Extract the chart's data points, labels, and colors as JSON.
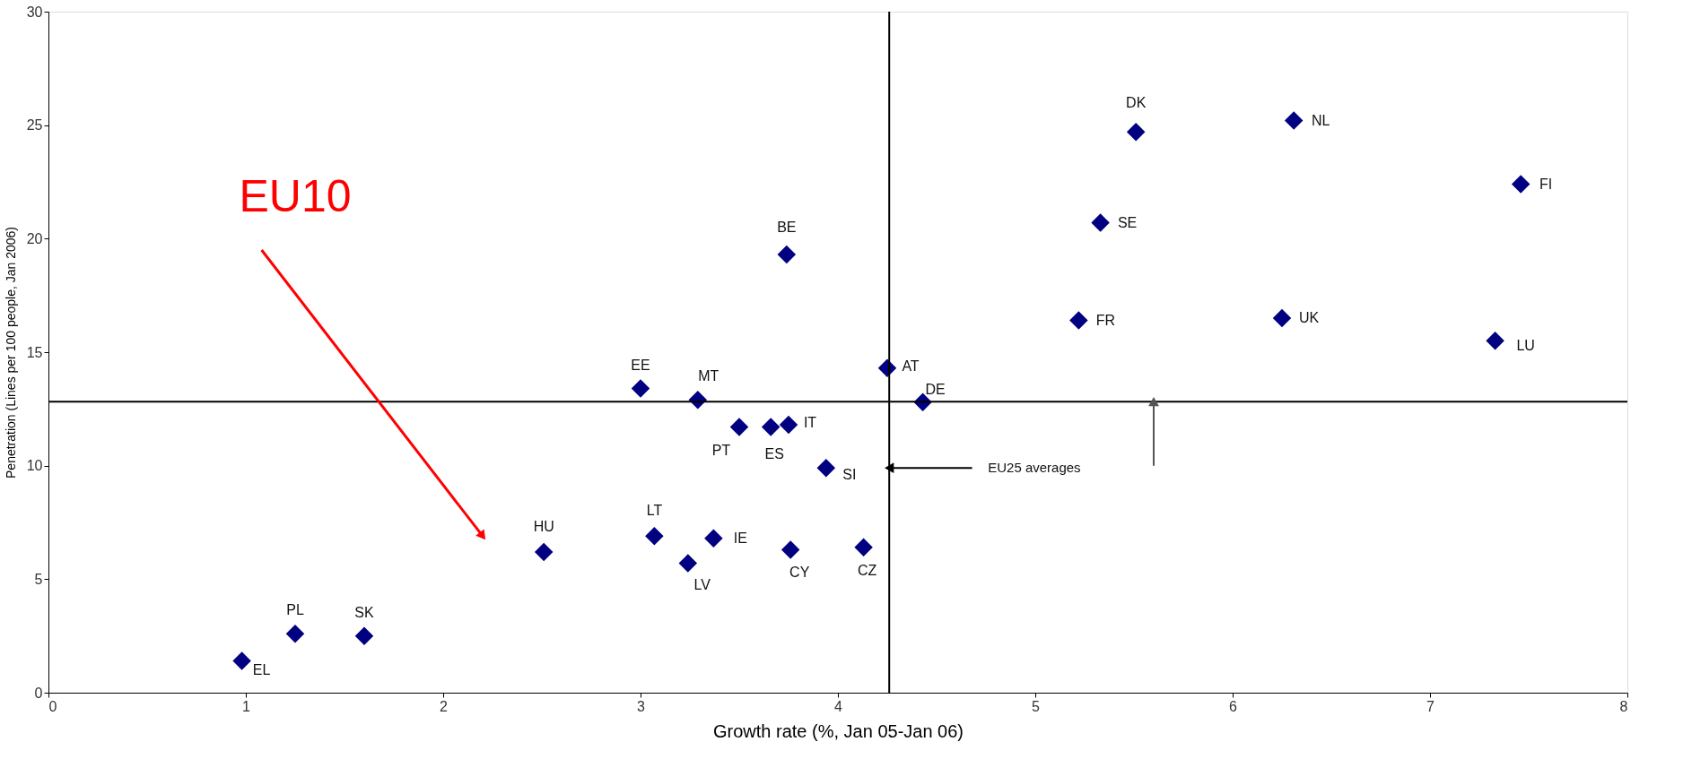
{
  "chart_data": {
    "type": "scatter",
    "xlabel": "Growth rate (%, Jan 05-Jan 06)",
    "ylabel": "Penetration (Lines per 100 people, Jan 2006)",
    "xlim": [
      0,
      8
    ],
    "xticks": [
      0,
      1,
      2,
      3,
      4,
      5,
      6,
      7,
      8
    ],
    "ylim": [
      0,
      30
    ],
    "yticks": [
      0,
      5,
      10,
      15,
      20,
      25,
      30
    ],
    "grid": false,
    "marker": "diamond",
    "series": [
      {
        "color": "#000080",
        "x": [
          0.98,
          1.25,
          1.6,
          2.51,
          3.07,
          3.24,
          3.37,
          3.76,
          4.13,
          3.94,
          3.5,
          3.66,
          3.75,
          3.29,
          3.0,
          3.74,
          4.25,
          4.43,
          5.22,
          5.33,
          5.51,
          6.31,
          6.25,
          7.46,
          7.33
        ],
        "values": [
          1.4,
          2.6,
          2.5,
          6.2,
          6.9,
          5.7,
          6.8,
          6.3,
          6.4,
          9.9,
          11.7,
          11.7,
          11.8,
          12.9,
          13.4,
          19.3,
          14.3,
          12.8,
          16.4,
          20.7,
          24.7,
          25.2,
          16.5,
          22.4,
          15.5
        ]
      }
    ],
    "ref_lines": [
      {
        "axis": "x",
        "value": 4.26,
        "color": "#000000"
      },
      {
        "axis": "y",
        "value": 12.82,
        "color": "#000000"
      }
    ],
    "annotations": [
      {
        "text": "EL",
        "x": 0.98,
        "y": 1.4
      },
      {
        "text": "PL",
        "x": 1.25,
        "y": 2.6
      },
      {
        "text": "SK",
        "x": 1.6,
        "y": 2.5
      },
      {
        "text": "HU",
        "x": 2.51,
        "y": 6.2
      },
      {
        "text": "LT",
        "x": 3.07,
        "y": 6.9
      },
      {
        "text": "LV",
        "x": 3.24,
        "y": 5.7
      },
      {
        "text": "IE",
        "x": 3.37,
        "y": 6.8
      },
      {
        "text": "CY",
        "x": 3.76,
        "y": 6.3
      },
      {
        "text": "CZ",
        "x": 4.13,
        "y": 6.4
      },
      {
        "text": "SI",
        "x": 3.94,
        "y": 9.9
      },
      {
        "text": "PT",
        "x": 3.5,
        "y": 11.7
      },
      {
        "text": "ES",
        "x": 3.66,
        "y": 11.7
      },
      {
        "text": "IT",
        "x": 3.75,
        "y": 11.8
      },
      {
        "text": "MT",
        "x": 3.29,
        "y": 12.9
      },
      {
        "text": "EE",
        "x": 3.0,
        "y": 13.4
      },
      {
        "text": "BE",
        "x": 3.74,
        "y": 19.3
      },
      {
        "text": "AT",
        "x": 4.25,
        "y": 14.3
      },
      {
        "text": "DE",
        "x": 4.43,
        "y": 12.8
      },
      {
        "text": "FR",
        "x": 5.22,
        "y": 16.4
      },
      {
        "text": "SE",
        "x": 5.33,
        "y": 20.7
      },
      {
        "text": "DK",
        "x": 5.51,
        "y": 24.7
      },
      {
        "text": "NL",
        "x": 6.31,
        "y": 25.2
      },
      {
        "text": "UK",
        "x": 6.25,
        "y": 16.5
      },
      {
        "text": "FI",
        "x": 7.46,
        "y": 22.4
      },
      {
        "text": "LU",
        "x": 7.33,
        "y": 15.5
      },
      "EU10",
      {
        "text": "EU25 averages",
        "x": 4.26,
        "y": 9.9
      }
    ]
  }
}
